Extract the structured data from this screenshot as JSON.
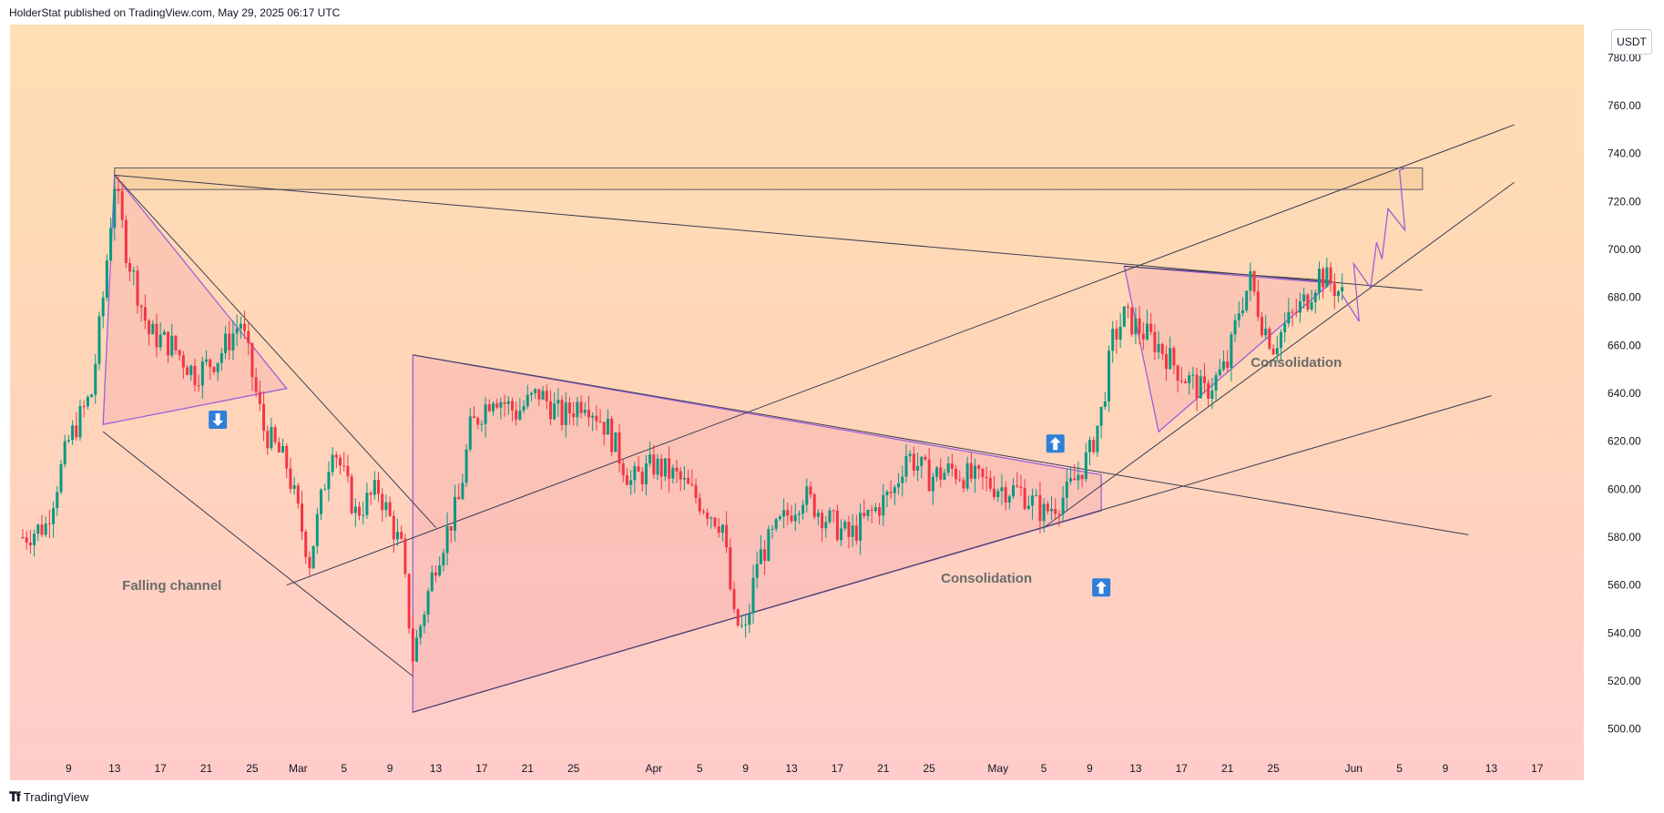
{
  "header": {
    "publisher": "HolderStat published on TradingView.com, May 29, 2025 06:17 UTC"
  },
  "footer": {
    "brand": "TradingView",
    "logo": "tradingview-logo"
  },
  "price_axis": {
    "currency": "USDT"
  },
  "colors": {
    "up": "#089981",
    "down": "#f23645",
    "line": "#3c3c50",
    "purple": "#9c5fd9",
    "arrow_bg": "#2f7fd9"
  },
  "chart_data": {
    "type": "candlestick",
    "title": "",
    "xlabel": "",
    "ylabel": "",
    "ylim": [
      490,
      790
    ],
    "y_ticks": [
      780,
      760,
      740,
      720,
      700,
      680,
      660,
      640,
      620,
      600,
      580,
      560,
      540,
      520,
      500
    ],
    "y_tick_labels": [
      "780.00",
      "760.00",
      "740.00",
      "720.00",
      "700.00",
      "680.00",
      "660.00",
      "640.00",
      "620.00",
      "600.00",
      "580.00",
      "560.00",
      "540.00",
      "520.00",
      "500.00"
    ],
    "x_range": [
      "2025-02-05",
      "2025-06-19"
    ],
    "x_ticks": [
      {
        "date": "2025-02-09",
        "label": "9"
      },
      {
        "date": "2025-02-13",
        "label": "13"
      },
      {
        "date": "2025-02-17",
        "label": "17"
      },
      {
        "date": "2025-02-21",
        "label": "21"
      },
      {
        "date": "2025-02-25",
        "label": "25"
      },
      {
        "date": "2025-03-01",
        "label": "Mar"
      },
      {
        "date": "2025-03-05",
        "label": "5"
      },
      {
        "date": "2025-03-09",
        "label": "9"
      },
      {
        "date": "2025-03-13",
        "label": "13"
      },
      {
        "date": "2025-03-17",
        "label": "17"
      },
      {
        "date": "2025-03-21",
        "label": "21"
      },
      {
        "date": "2025-03-25",
        "label": "25"
      },
      {
        "date": "2025-04-01",
        "label": "Apr"
      },
      {
        "date": "2025-04-05",
        "label": "5"
      },
      {
        "date": "2025-04-09",
        "label": "9"
      },
      {
        "date": "2025-04-13",
        "label": "13"
      },
      {
        "date": "2025-04-17",
        "label": "17"
      },
      {
        "date": "2025-04-21",
        "label": "21"
      },
      {
        "date": "2025-04-25",
        "label": "25"
      },
      {
        "date": "2025-05-01",
        "label": "May"
      },
      {
        "date": "2025-05-05",
        "label": "5"
      },
      {
        "date": "2025-05-09",
        "label": "9"
      },
      {
        "date": "2025-05-13",
        "label": "13"
      },
      {
        "date": "2025-05-17",
        "label": "17"
      },
      {
        "date": "2025-05-21",
        "label": "21"
      },
      {
        "date": "2025-05-25",
        "label": "25"
      },
      {
        "date": "2025-06-01",
        "label": "Jun"
      },
      {
        "date": "2025-06-05",
        "label": "5"
      },
      {
        "date": "2025-06-09",
        "label": "9"
      },
      {
        "date": "2025-06-13",
        "label": "13"
      },
      {
        "date": "2025-06-17",
        "label": "17"
      }
    ],
    "price_path": [
      [
        "2025-02-05",
        580
      ],
      [
        "2025-02-07",
        585
      ],
      [
        "2025-02-09",
        620
      ],
      [
        "2025-02-11",
        640
      ],
      [
        "2025-02-12",
        680
      ],
      [
        "2025-02-13",
        728
      ],
      [
        "2025-02-14",
        700
      ],
      [
        "2025-02-16",
        665
      ],
      [
        "2025-02-18",
        660
      ],
      [
        "2025-02-20",
        648
      ],
      [
        "2025-02-22",
        655
      ],
      [
        "2025-02-24",
        670
      ],
      [
        "2025-02-26",
        625
      ],
      [
        "2025-02-28",
        610
      ],
      [
        "2025-03-02",
        570
      ],
      [
        "2025-03-04",
        620
      ],
      [
        "2025-03-06",
        590
      ],
      [
        "2025-03-08",
        600
      ],
      [
        "2025-03-10",
        575
      ],
      [
        "2025-03-11",
        530
      ],
      [
        "2025-03-13",
        570
      ],
      [
        "2025-03-15",
        595
      ],
      [
        "2025-03-16",
        625
      ],
      [
        "2025-03-18",
        640
      ],
      [
        "2025-03-20",
        632
      ],
      [
        "2025-03-22",
        640
      ],
      [
        "2025-03-24",
        630
      ],
      [
        "2025-03-26",
        638
      ],
      [
        "2025-03-28",
        625
      ],
      [
        "2025-03-30",
        603
      ],
      [
        "2025-04-01",
        610
      ],
      [
        "2025-04-03",
        605
      ],
      [
        "2025-04-05",
        595
      ],
      [
        "2025-04-07",
        585
      ],
      [
        "2025-04-08",
        545
      ],
      [
        "2025-04-09",
        540
      ],
      [
        "2025-04-10",
        570
      ],
      [
        "2025-04-12",
        585
      ],
      [
        "2025-04-14",
        598
      ],
      [
        "2025-04-16",
        588
      ],
      [
        "2025-04-18",
        580
      ],
      [
        "2025-04-20",
        590
      ],
      [
        "2025-04-22",
        600
      ],
      [
        "2025-04-23",
        615
      ],
      [
        "2025-04-25",
        605
      ],
      [
        "2025-04-27",
        608
      ],
      [
        "2025-04-29",
        604
      ],
      [
        "2025-05-01",
        601
      ],
      [
        "2025-05-03",
        599
      ],
      [
        "2025-05-05",
        590
      ],
      [
        "2025-05-07",
        598
      ],
      [
        "2025-05-09",
        615
      ],
      [
        "2025-05-10",
        632
      ],
      [
        "2025-05-11",
        662
      ],
      [
        "2025-05-12",
        672
      ],
      [
        "2025-05-13",
        668
      ],
      [
        "2025-05-15",
        660
      ],
      [
        "2025-05-17",
        648
      ],
      [
        "2025-05-19",
        640
      ],
      [
        "2025-05-21",
        652
      ],
      [
        "2025-05-22",
        675
      ],
      [
        "2025-05-23",
        687
      ],
      [
        "2025-05-24",
        670
      ],
      [
        "2025-05-25",
        660
      ],
      [
        "2025-05-26",
        668
      ],
      [
        "2025-05-28",
        680
      ],
      [
        "2025-05-29",
        690
      ],
      [
        "2025-05-30",
        686
      ],
      [
        "2025-05-31",
        681
      ]
    ],
    "annotations": [
      {
        "text": "Falling channel",
        "date": "2025-02-18",
        "price": 558
      },
      {
        "text": "Consolidation",
        "date": "2025-04-30",
        "price": 561
      },
      {
        "text": "Consolidation",
        "date": "2025-05-27",
        "price": 651
      }
    ],
    "arrow_markers": [
      {
        "direction": "down",
        "date": "2025-02-22",
        "price": 629
      },
      {
        "direction": "up",
        "date": "2025-05-06",
        "price": 619
      },
      {
        "direction": "up",
        "date": "2025-05-10",
        "price": 559
      }
    ],
    "resistance_zone": {
      "start": "2025-02-13",
      "end": "2025-06-07",
      "top": 734,
      "bottom": 725
    },
    "trend_lines": [
      {
        "from": [
          "2025-02-13",
          731
        ],
        "to": [
          "2025-06-07",
          683
        ]
      },
      {
        "from": [
          "2025-02-12",
          624
        ],
        "to": [
          "2025-03-11",
          522
        ]
      },
      {
        "from": [
          "2025-02-13",
          731
        ],
        "to": [
          "2025-03-13",
          584
        ]
      },
      {
        "from": [
          "2025-02-28",
          560
        ],
        "to": [
          "2025-06-15",
          752
        ]
      },
      {
        "from": [
          "2025-03-11",
          656
        ],
        "to": [
          "2025-06-11",
          581
        ]
      },
      {
        "from": [
          "2025-03-11",
          507
        ],
        "to": [
          "2025-06-13",
          639
        ]
      },
      {
        "from": [
          "2025-05-05",
          584
        ],
        "to": [
          "2025-06-15",
          728
        ]
      },
      {
        "from": [
          "2025-05-12",
          693
        ],
        "to": [
          "2025-05-30",
          687
        ]
      }
    ],
    "triangles": [
      {
        "points": [
          [
            "2025-02-13",
            731
          ],
          [
            "2025-02-12",
            627
          ],
          [
            "2025-02-28",
            642
          ]
        ]
      },
      {
        "points": [
          [
            "2025-03-11",
            656
          ],
          [
            "2025-03-11",
            507
          ],
          [
            "2025-05-10",
            591
          ],
          [
            "2025-05-10",
            606
          ]
        ]
      },
      {
        "points": [
          [
            "2025-05-12",
            693
          ],
          [
            "2025-05-15",
            624
          ],
          [
            "2025-05-30",
            686
          ]
        ]
      }
    ],
    "projection_path": [
      [
        "2025-05-31",
        681
      ],
      [
        "2025-06-01",
        670
      ],
      [
        "2025-06-01",
        694
      ],
      [
        "2025-06-02",
        684
      ],
      [
        "2025-06-03",
        703
      ],
      [
        "2025-06-03",
        696
      ],
      [
        "2025-06-04",
        717
      ],
      [
        "2025-06-05",
        708
      ],
      [
        "2025-06-05",
        733
      ],
      [
        "2025-06-05",
        734
      ]
    ]
  }
}
